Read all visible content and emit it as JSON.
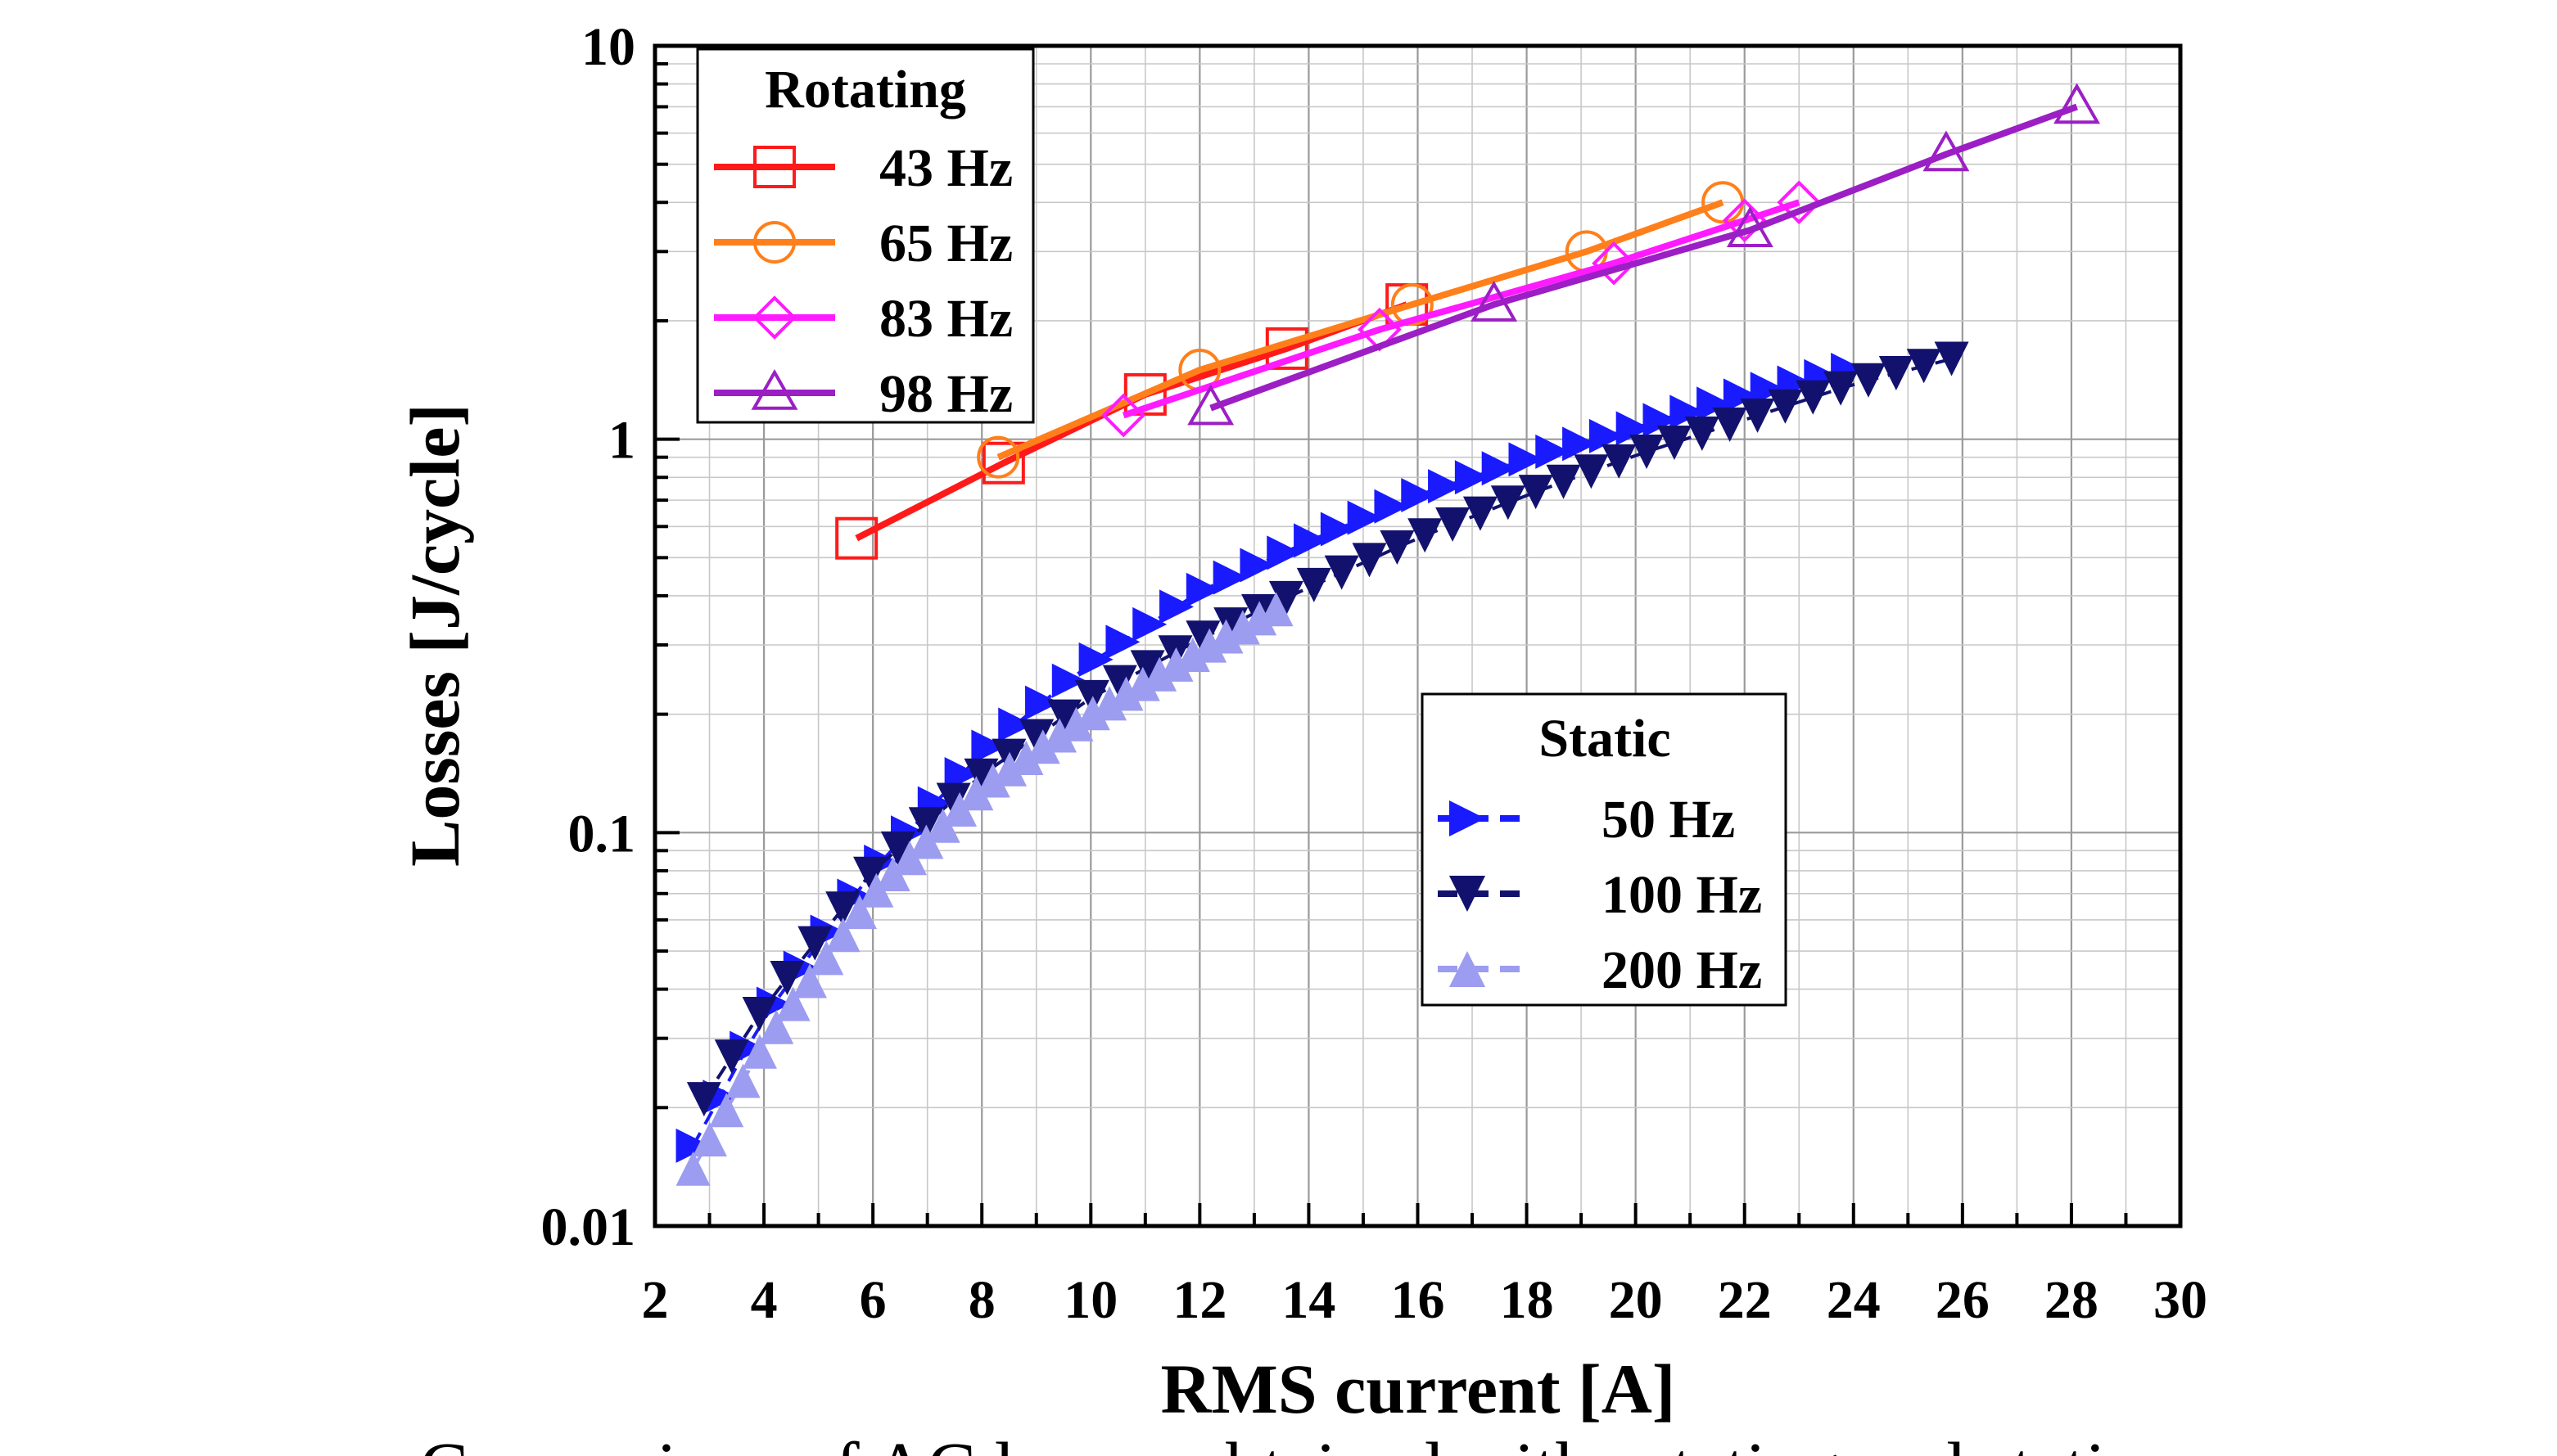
{
  "chart_data": {
    "type": "scatter",
    "xlabel": "RMS current [A]",
    "ylabel": "Losses [J/cycle]",
    "xlim": [
      2,
      30
    ],
    "ylim": [
      0.01,
      10
    ],
    "yscale": "log",
    "grid": true,
    "xticks": [
      "2",
      "4",
      "6",
      "8",
      "10",
      "12",
      "14",
      "16",
      "18",
      "20",
      "22",
      "24",
      "26",
      "28",
      "30"
    ],
    "yticks": [
      "0.01",
      "0.1",
      "1",
      "10"
    ],
    "legends": [
      {
        "title": "Rotating",
        "placement": "top-left",
        "entries": [
          "43 Hz",
          "65 Hz",
          "83 Hz",
          "98 Hz"
        ]
      },
      {
        "title": "Static",
        "placement": "center-right",
        "entries": [
          "50 Hz",
          "100 Hz",
          "200 Hz"
        ]
      }
    ],
    "caption": "Comparison of AC losses obtained with rotating and static",
    "series": [
      {
        "name": "43 Hz",
        "group": "Rotating",
        "marker": "square",
        "line": "solid",
        "color": "#ff1a1a",
        "x": [
          5.7,
          8.4,
          11.0,
          13.6,
          15.8
        ],
        "y": [
          0.56,
          0.87,
          1.3,
          1.7,
          2.2
        ]
      },
      {
        "name": "65 Hz",
        "group": "Rotating",
        "marker": "circle",
        "line": "solid",
        "color": "#ff7f1a",
        "x": [
          8.3,
          12.0,
          15.9,
          19.1,
          21.6
        ],
        "y": [
          0.9,
          1.5,
          2.2,
          3.0,
          4.0
        ]
      },
      {
        "name": "83 Hz",
        "group": "Rotating",
        "marker": "diamond",
        "line": "solid",
        "color": "#ff1aff",
        "x": [
          10.6,
          15.3,
          19.6,
          22.0,
          23.0
        ],
        "y": [
          1.15,
          1.9,
          2.8,
          3.6,
          4.0
        ]
      },
      {
        "name": "98 Hz",
        "group": "Rotating",
        "marker": "triangle-up-open",
        "line": "solid",
        "color": "#9b1fc4",
        "x": [
          12.2,
          17.4,
          22.1,
          25.7,
          28.1
        ],
        "y": [
          1.2,
          2.2,
          3.4,
          5.3,
          7.0
        ]
      },
      {
        "name": "50 Hz",
        "group": "Static",
        "marker": "triangle-right",
        "line": "dashed",
        "color": "#1a1aff",
        "x_start": 2.7,
        "x_end": 23.9,
        "count": 44,
        "x_ref": [
          2.7,
          4.0,
          6.0,
          8.0,
          10.0,
          12.0,
          14.0,
          16.0,
          18.0,
          20.0,
          22.0,
          23.9
        ],
        "y_ref": [
          0.016,
          0.034,
          0.08,
          0.16,
          0.27,
          0.41,
          0.55,
          0.72,
          0.89,
          1.07,
          1.3,
          1.5
        ]
      },
      {
        "name": "100 Hz",
        "group": "Static",
        "marker": "triangle-down",
        "line": "dashed",
        "color": "#12126e",
        "x_start": 2.9,
        "x_end": 25.8,
        "count": 46,
        "x_ref": [
          2.9,
          4.0,
          6.0,
          8.0,
          10.0,
          12.0,
          14.0,
          16.0,
          18.0,
          20.0,
          22.0,
          24.0,
          25.8
        ],
        "y_ref": [
          0.021,
          0.036,
          0.08,
          0.14,
          0.22,
          0.31,
          0.42,
          0.56,
          0.72,
          0.91,
          1.12,
          1.38,
          1.6
        ]
      },
      {
        "name": "200 Hz",
        "group": "Static",
        "marker": "triangle-up",
        "line": "dashed",
        "color": "#9c9cf0",
        "x_start": 2.7,
        "x_end": 13.4,
        "count": 36,
        "x_ref": [
          2.7,
          4.0,
          6.0,
          8.0,
          10.0,
          12.0,
          13.4
        ],
        "y_ref": [
          0.014,
          0.029,
          0.07,
          0.13,
          0.2,
          0.29,
          0.37
        ]
      }
    ]
  }
}
